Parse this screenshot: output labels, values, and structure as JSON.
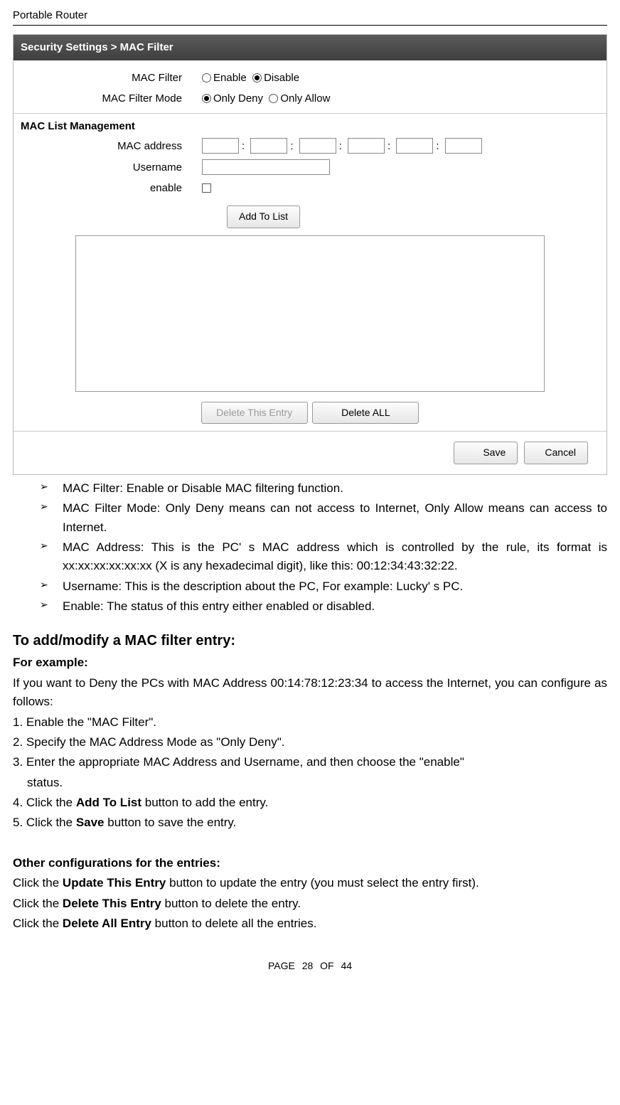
{
  "header": {
    "title": "Portable Router"
  },
  "shot": {
    "titlebar": "Security Settings > MAC Filter",
    "fields": {
      "mac_filter_label": "MAC Filter",
      "mac_filter_enable": "Enable",
      "mac_filter_disable": "Disable",
      "mac_filter_mode_label": "MAC Filter Mode",
      "mode_only_deny": "Only Deny",
      "mode_only_allow": "Only Allow",
      "maclist_header": "MAC List Management",
      "mac_address_label": "MAC address",
      "username_label": "Username",
      "enable_label": "enable",
      "add_to_list": "Add To List",
      "delete_this_entry": "Delete This Entry",
      "delete_all": "Delete ALL",
      "save": "Save",
      "cancel": "Cancel"
    }
  },
  "bullets": {
    "b1": "MAC Filter: Enable or Disable MAC filtering function.",
    "b2": "MAC Filter Mode: Only Deny means can not access to Internet, Only Allow means can access to Internet.",
    "b3": "MAC Address: This is the PC' s MAC address which is controlled by the rule, its format is xx:xx:xx:xx:xx:xx (X is any hexadecimal digit), like this: 00:12:34:43:32:22.",
    "b4": "Username: This is the description about the PC, For example: Lucky' s PC.",
    "b5": "Enable: The status of this entry either enabled or disabled."
  },
  "section1": {
    "h": "To add/modify a MAC filter entry:",
    "for_example": "For example:",
    "intro": "If you want to Deny the PCs with MAC Address 00:14:78:12:23:34 to access the Internet, you can configure as follows:",
    "s1": "1. Enable the \"MAC Filter\".",
    "s2": "2. Specify the MAC Address Mode as \"Only Deny\".",
    "s3a": "3. Enter the appropriate MAC Address and Username, and then choose the \"enable\"",
    "s3b": "status.",
    "s4a": "4. Click the ",
    "s4bold": "Add To List",
    "s4b": " button to add the entry.",
    "s5a": "5. Click the ",
    "s5bold": "Save",
    "s5b": " button to save the entry."
  },
  "section2": {
    "h": "Other configurations for the entries:",
    "l1a": "Click the ",
    "l1bold": "Update This Entry",
    "l1b": " button to update the entry (you must select the entry first).",
    "l2a": "Click the ",
    "l2bold": "Delete This Entry",
    "l2b": " button to delete the entry.",
    "l3a": "Click the ",
    "l3bold": "Delete All Entry",
    "l3b": " button to delete all the entries."
  },
  "footer": {
    "text": "PAGE  28  OF  44"
  }
}
